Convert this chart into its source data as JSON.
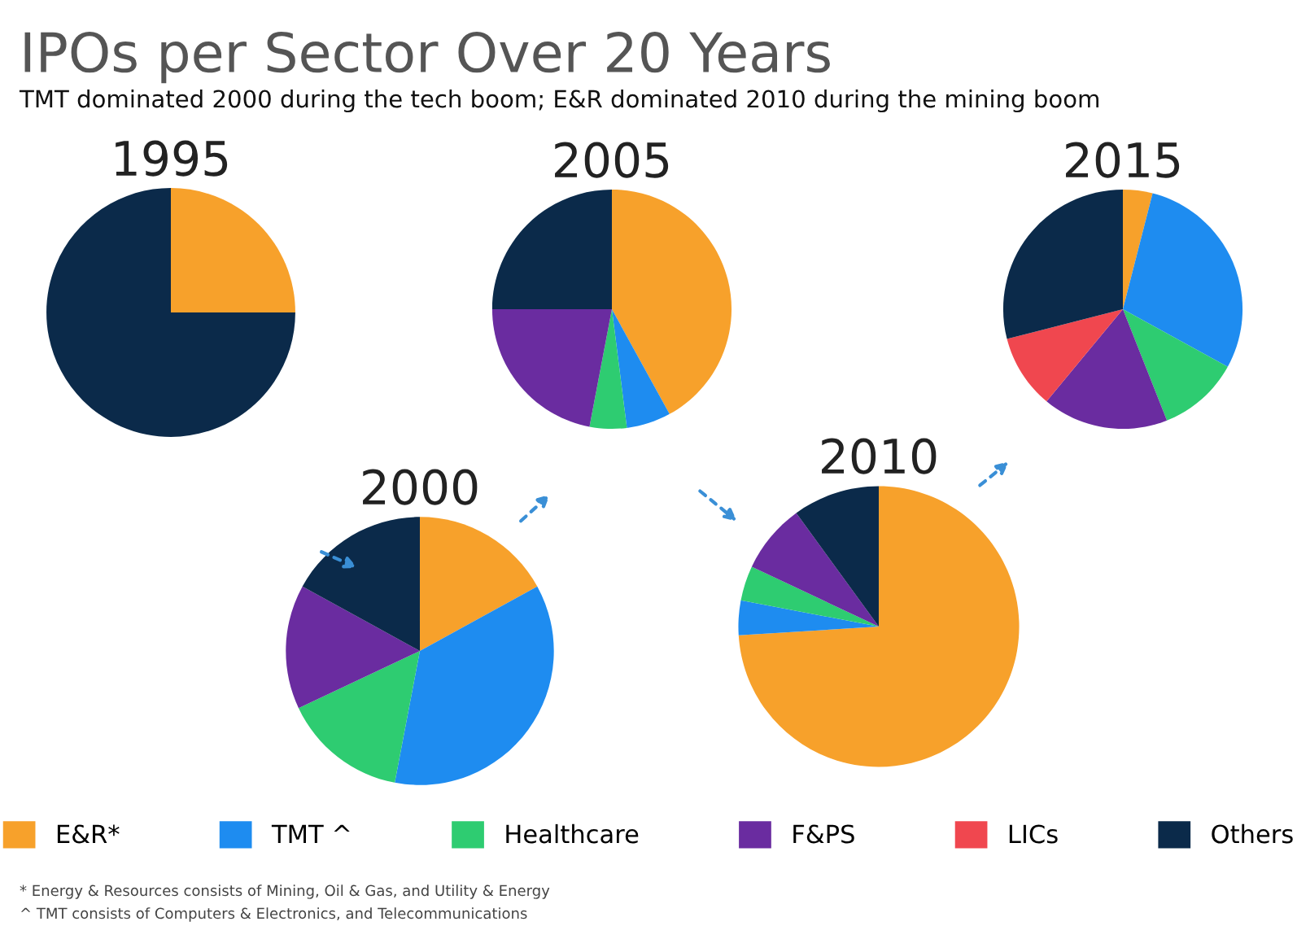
{
  "chart_data": [
    {
      "type": "other",
      "title": "IPOs per Sector Over 20 Years",
      "subtitle": "TMT dominated 2000 during the tech boom; E&R dominated 2010 during the mining boom",
      "annotations": [
        "* Energy & Resources consists of Mining, Oil & Gas, and Utility & Energy",
        "^ TMT consists of Computers & Electronics, and Telecommunications"
      ]
    },
    {
      "type": "pie",
      "title": "1995",
      "categories": [
        null,
        null
      ],
      "values": [
        25,
        75
      ],
      "colors": [
        "#f7a12b",
        "#0b2a4a"
      ]
    },
    {
      "type": "pie",
      "title": "2000",
      "categories": [
        null,
        null,
        null,
        null,
        null
      ],
      "values": [
        17,
        36,
        15,
        15,
        17
      ],
      "colors": [
        "#f7a12b",
        "#1e8cf0",
        "#2ecc71",
        "#6a2ca0",
        "#0b2a4a"
      ]
    },
    {
      "type": "pie",
      "title": "2005",
      "categories": [
        null,
        null,
        null,
        null,
        null
      ],
      "values": [
        42,
        6,
        5,
        22,
        25
      ],
      "colors": [
        "#f7a12b",
        "#1e8cf0",
        "#2ecc71",
        "#6a2ca0",
        "#0b2a4a"
      ]
    },
    {
      "type": "pie",
      "title": "2010",
      "categories": [
        null,
        null,
        null,
        null,
        null
      ],
      "values": [
        74,
        4,
        4,
        8,
        10
      ],
      "colors": [
        "#f7a12b",
        "#1e8cf0",
        "#2ecc71",
        "#6a2ca0",
        "#0b2a4a"
      ]
    },
    {
      "type": "pie",
      "title": "2015",
      "categories": [
        "E&R*",
        "TMT ^",
        "Healthcare",
        "F&PS",
        "LICs",
        "Others"
      ],
      "values": [
        4,
        29,
        11,
        17,
        10,
        29
      ],
      "colors": [
        "#f7a12b",
        "#1e8cf0",
        "#2ecc71",
        "#6a2ca0",
        "#f0474f",
        "#0b2a4a"
      ],
      "legend": "bottom"
    }
  ]
}
